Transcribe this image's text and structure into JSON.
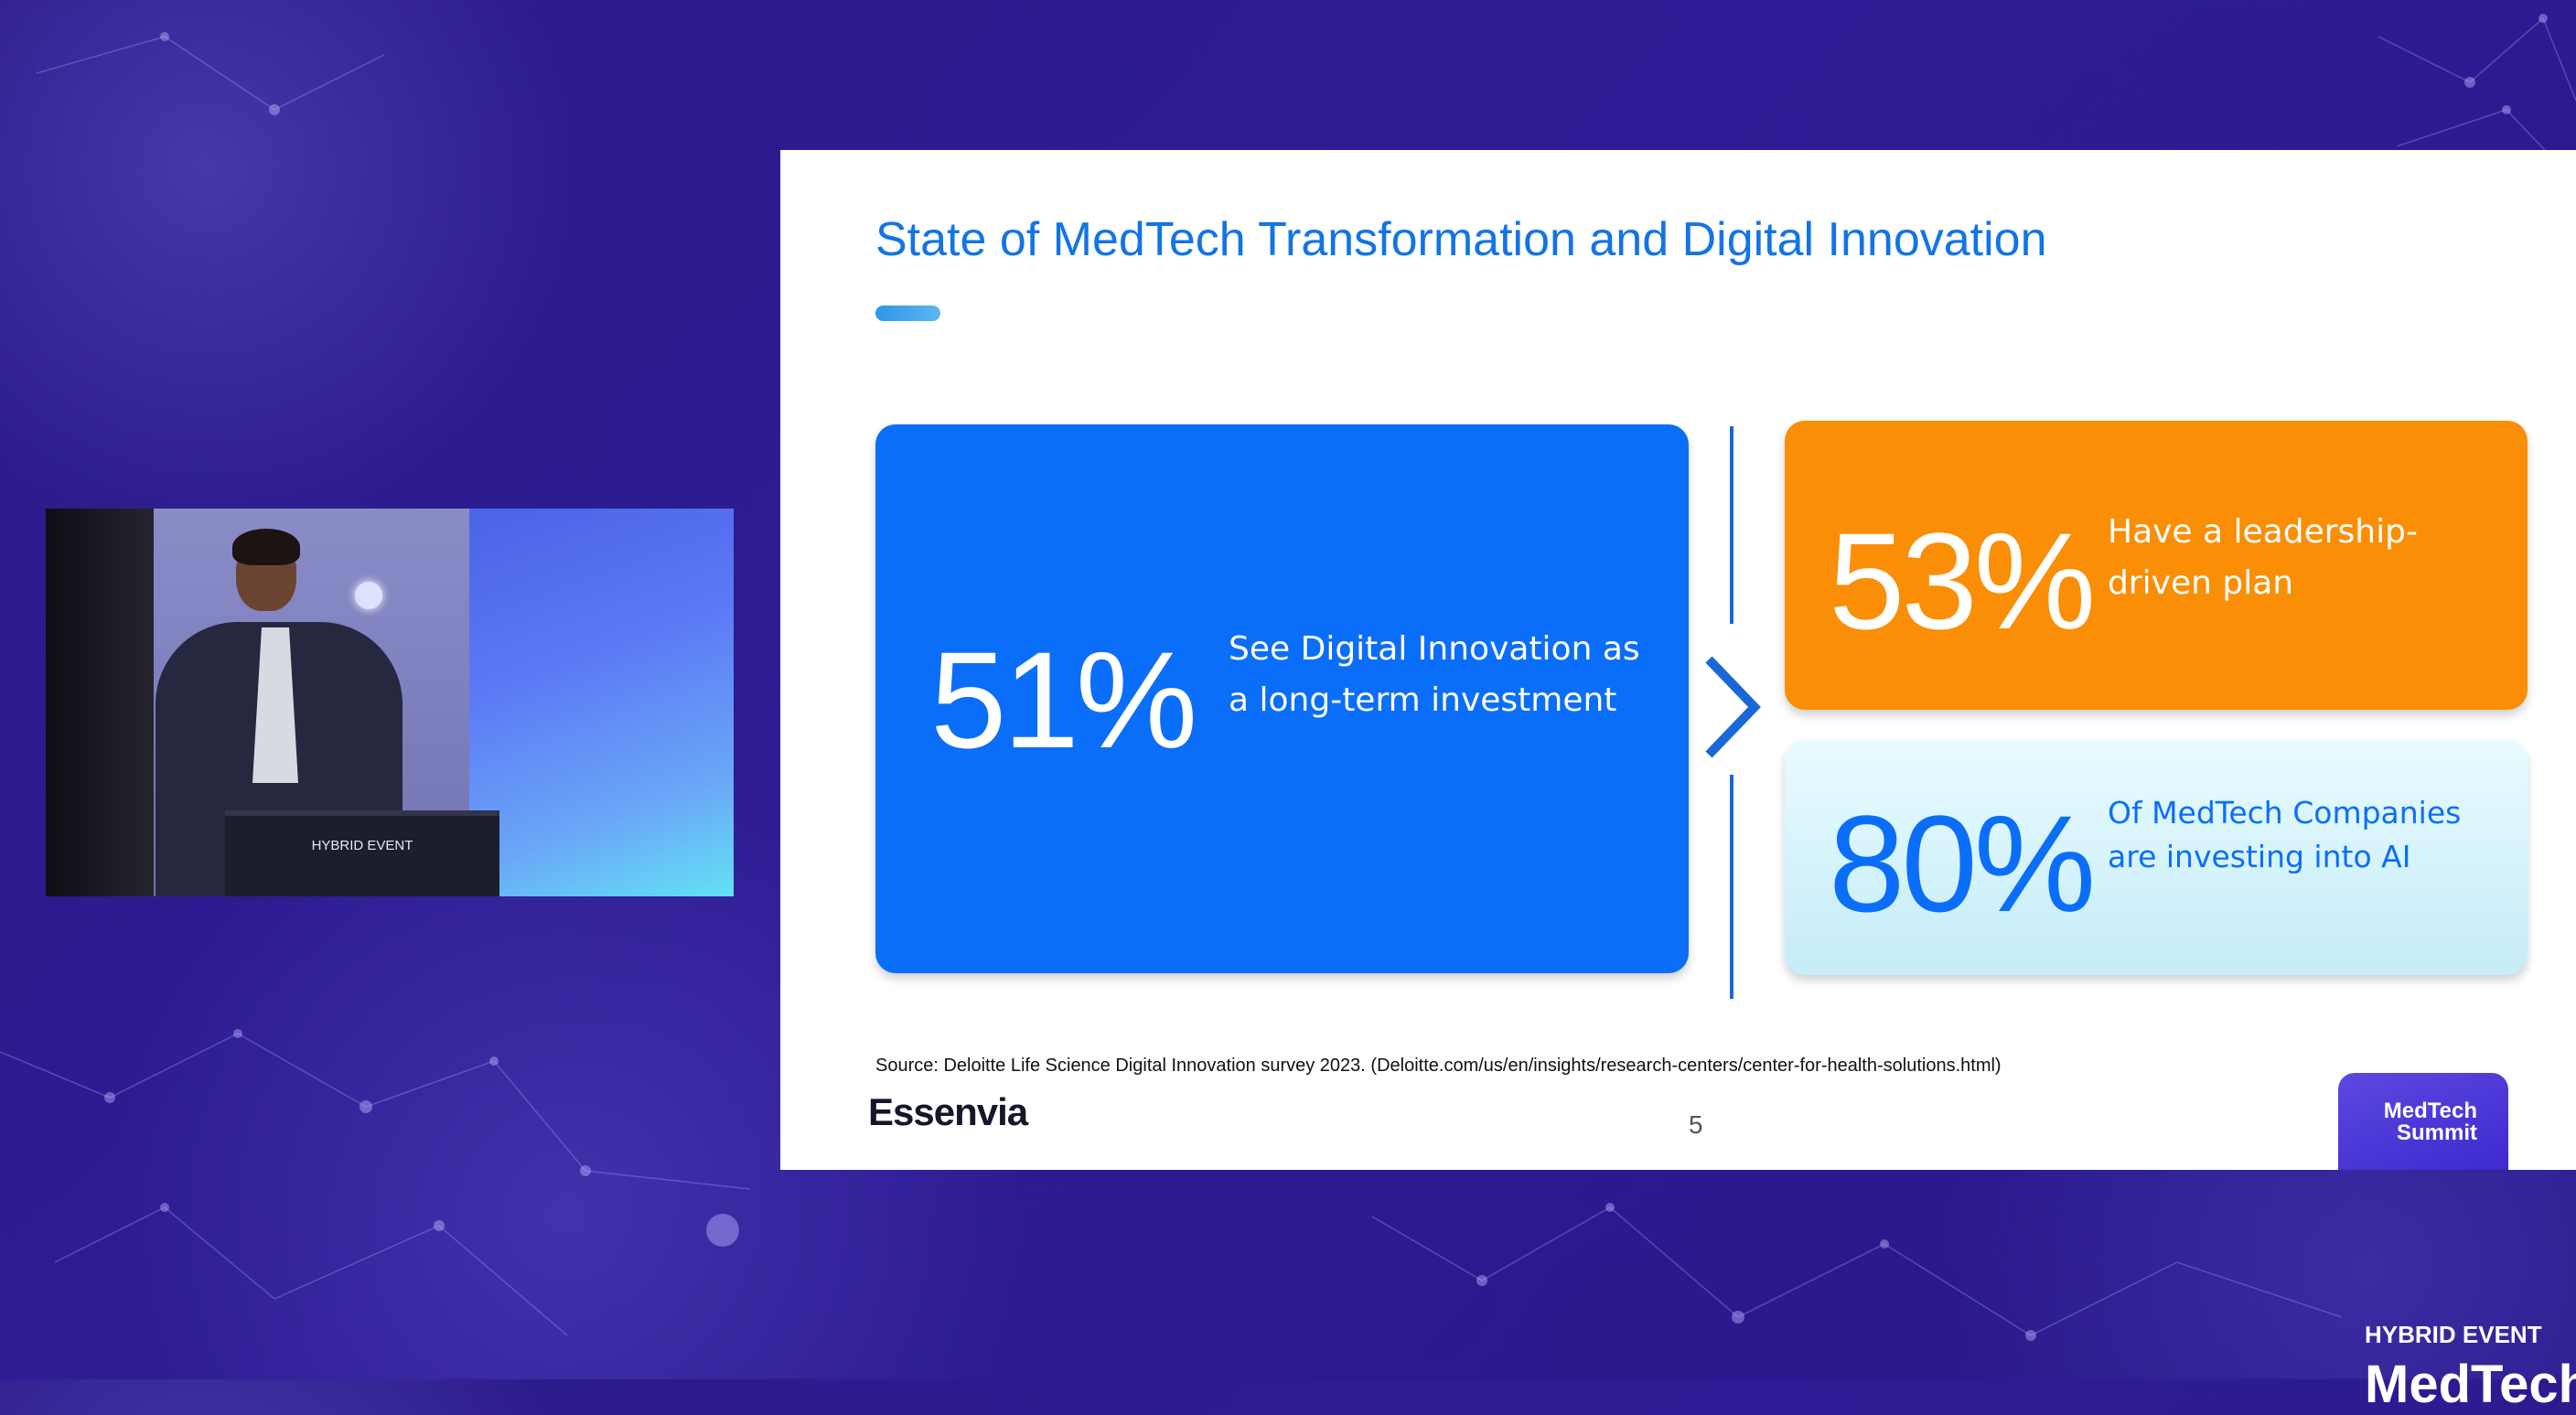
{
  "slide": {
    "title": "State of MedTech Transformation and Digital Innovation",
    "stats": [
      {
        "percent": "51%",
        "description_line1": "See Digital Innovation as",
        "description_line2": "a long-term investment",
        "color": "#0b6ef9"
      },
      {
        "percent": "53%",
        "description_line1": "Have a leadership-",
        "description_line2": "driven plan",
        "color": "#fa8e06"
      },
      {
        "percent": "80%",
        "description_line1": "Of MedTech Companies",
        "description_line2": "are investing into AI",
        "color": "#c5ecf8"
      }
    ],
    "source": "Source: Deloitte Life Science Digital Innovation survey 2023. (Deloitte.com/us/en/insights/research-centers/center-for-health-solutions.html)",
    "logo": "Essenvia",
    "page_number": "5",
    "badge_line1": "MedTech",
    "badge_line2": "Summit"
  },
  "video": {
    "podium_label": "HYBRID EVENT"
  },
  "overlay": {
    "hybrid_label": "HYBRID EVENT",
    "brand_partial": "MedTech"
  },
  "icons": [
    "chevron-right-icon",
    "network-background"
  ]
}
